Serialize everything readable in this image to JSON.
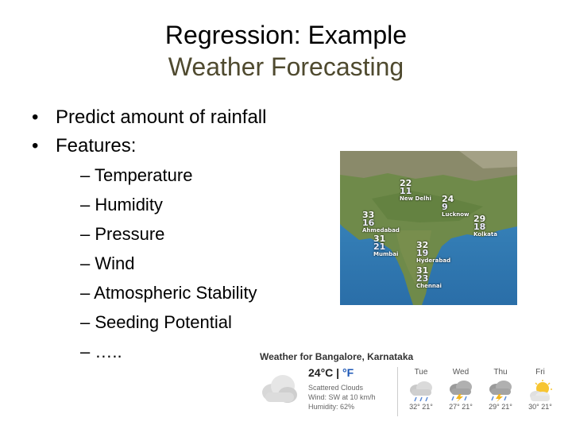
{
  "slide": {
    "title_line1": "Regression: Example",
    "title_line2": "Weather Forecasting",
    "title_line2_color": "#4f4a2f",
    "bullets": [
      "Predict amount of rainfall",
      "Features:"
    ],
    "features": [
      "Temperature",
      "Humidity",
      "Pressure",
      "Wind",
      "Atmospheric Stability",
      "Seeding Potential",
      "….."
    ]
  },
  "map": {
    "cities": [
      {
        "high": "22",
        "low": "11",
        "name": "New Delhi"
      },
      {
        "high": "24",
        "low": "9",
        "name": "Lucknow"
      },
      {
        "high": "33",
        "low": "16",
        "name": "Ahmedabad"
      },
      {
        "high": "29",
        "low": "18",
        "name": "Kolkata"
      },
      {
        "high": "31",
        "low": "21",
        "name": "Mumbai"
      },
      {
        "high": "32",
        "low": "19",
        "name": "Hyderabad"
      },
      {
        "high": "31",
        "low": "23",
        "name": "Chennai"
      }
    ]
  },
  "weather": {
    "title": "Weather for Bangalore, Karnataka",
    "temp": "24°C",
    "sep": " | ",
    "alt_unit": "°F",
    "condition": "Scattered Clouds",
    "wind": "Wind: SW at 10 km/h",
    "humidity": "Humidity: 62%",
    "forecast": [
      {
        "day": "Tue",
        "temps": "32° 21°",
        "icon": "rain-cloud-icon"
      },
      {
        "day": "Wed",
        "temps": "27° 21°",
        "icon": "thunderstorm-icon"
      },
      {
        "day": "Thu",
        "temps": "29° 21°",
        "icon": "thunderstorm-icon"
      },
      {
        "day": "Fri",
        "temps": "30° 21°",
        "icon": "partly-cloudy-icon"
      }
    ]
  }
}
